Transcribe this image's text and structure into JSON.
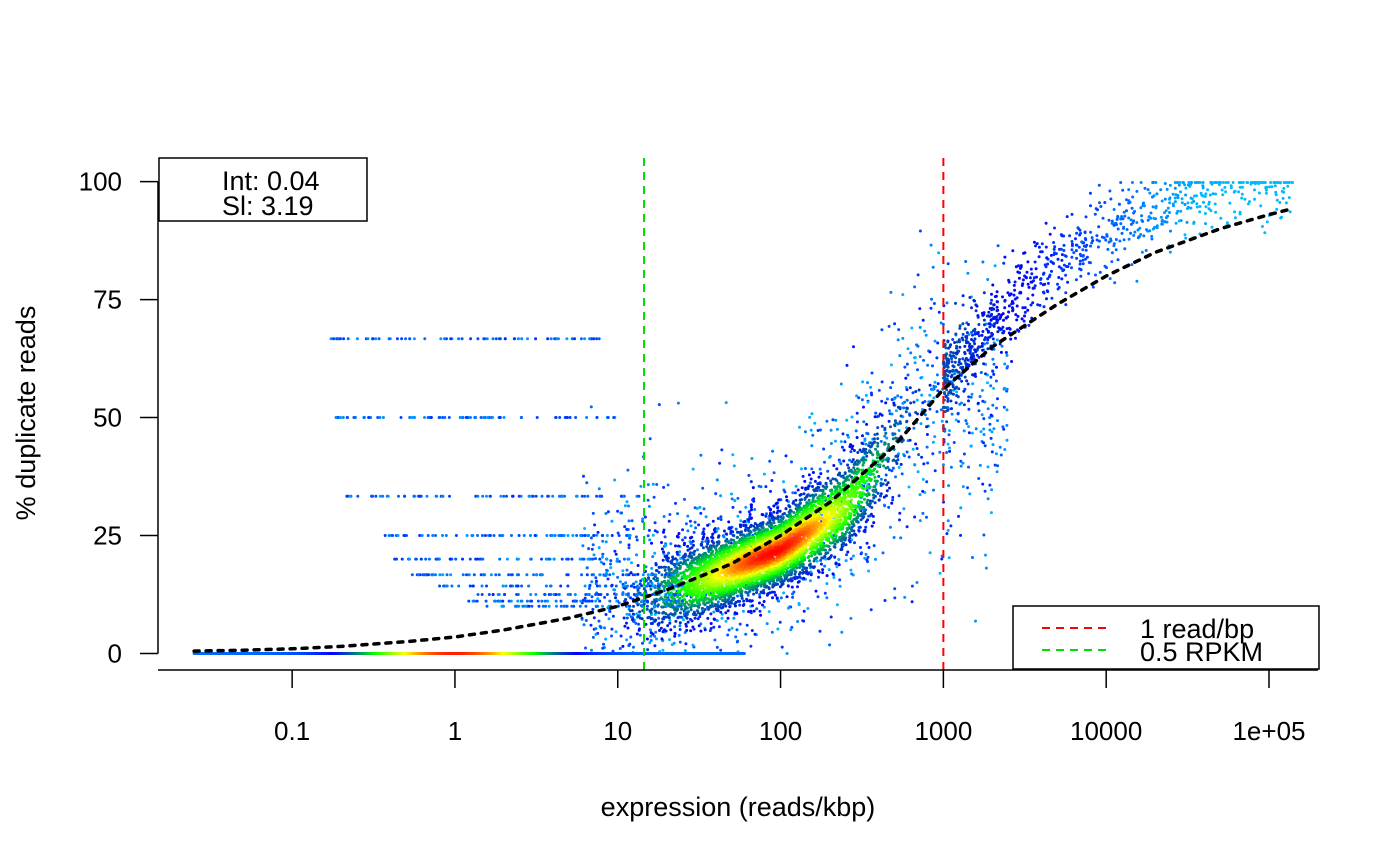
{
  "chart_data": {
    "type": "scatter",
    "title": "",
    "xlabel": "expression (reads/kbp)",
    "ylabel": "% duplicate reads",
    "xscale": "log10",
    "xlim": [
      0.015,
      200000
    ],
    "ylim": [
      -3.5,
      105
    ],
    "grid": false,
    "x_ticks": [
      0.1,
      1,
      10,
      100,
      1000,
      10000,
      100000
    ],
    "x_tick_labels": [
      "0.1",
      "1",
      "10",
      "100",
      "1000",
      "10000",
      "1e+05"
    ],
    "y_ticks": [
      0,
      25,
      50,
      75,
      100
    ],
    "y_tick_labels": [
      "0",
      "25",
      "50",
      "75",
      "100"
    ],
    "fit_box": {
      "position": "top-left",
      "lines": [
        "Int: 0.04",
        "Sl: 3.19"
      ]
    },
    "fit_curve": {
      "style": "black dotted",
      "x": [
        0.025,
        0.05,
        0.1,
        0.2,
        0.5,
        1,
        2,
        5,
        10,
        20,
        50,
        100,
        200,
        500,
        1000,
        2000,
        5000,
        10000,
        20000,
        50000,
        100000,
        130000
      ],
      "y": [
        0.5,
        0.7,
        1.0,
        1.5,
        2.5,
        3.5,
        5.0,
        7.5,
        10.0,
        13.5,
        19.0,
        25.0,
        32.0,
        44.0,
        56.0,
        65.0,
        74.0,
        80.0,
        85.0,
        90.0,
        93.0,
        94.0
      ]
    },
    "vlines": [
      {
        "x": 1000,
        "color": "#ff0000",
        "style": "dashed",
        "label": "1 read/bp"
      },
      {
        "x": 14.5,
        "color": "#00dd00",
        "style": "dashed",
        "label": "0.5 RPKM"
      }
    ],
    "legend": {
      "position": "bottom-right",
      "entries": [
        {
          "label": "1 read/bp",
          "color": "#ff0000",
          "style": "dashed"
        },
        {
          "label": "0.5 RPKM",
          "color": "#00dd00",
          "style": "dashed"
        }
      ]
    },
    "density_colormap": [
      "#00ccff",
      "#0000ff",
      "#00ff00",
      "#ffff00",
      "#ff0000"
    ],
    "density_ridge": {
      "x": [
        8,
        15,
        30,
        60,
        100,
        150,
        250,
        400,
        700
      ],
      "y": [
        10,
        12,
        15,
        19,
        22,
        26,
        31,
        40,
        53
      ],
      "spread": [
        5,
        5,
        4.5,
        4,
        4,
        4.5,
        5,
        5.5,
        6
      ]
    },
    "zero_band": {
      "y": 0,
      "x_range": [
        0.025,
        60
      ]
    },
    "sparse_rows": [
      {
        "y": 50,
        "x_range": [
          0.18,
          10
        ]
      },
      {
        "y": 33.3,
        "x_range": [
          0.2,
          14
        ]
      },
      {
        "y": 25,
        "x_range": [
          0.3,
          12
        ]
      },
      {
        "y": 20,
        "x_range": [
          0.4,
          12
        ]
      },
      {
        "y": 16.7,
        "x_range": [
          0.5,
          25
        ]
      },
      {
        "y": 14.3,
        "x_range": [
          0.8,
          25
        ]
      },
      {
        "y": 12.5,
        "x_range": [
          1,
          25
        ]
      },
      {
        "y": 11.1,
        "x_range": [
          1.2,
          25
        ]
      },
      {
        "y": 10,
        "x_range": [
          1.5,
          25
        ]
      },
      {
        "y": 66.7,
        "x_range": [
          0.17,
          8
        ]
      }
    ],
    "high_tail": {
      "x": [
        1000,
        2000,
        4000,
        8000,
        15000,
        30000,
        60000,
        140000
      ],
      "y": [
        58,
        70,
        80,
        87,
        92,
        96,
        98,
        99
      ]
    }
  }
}
